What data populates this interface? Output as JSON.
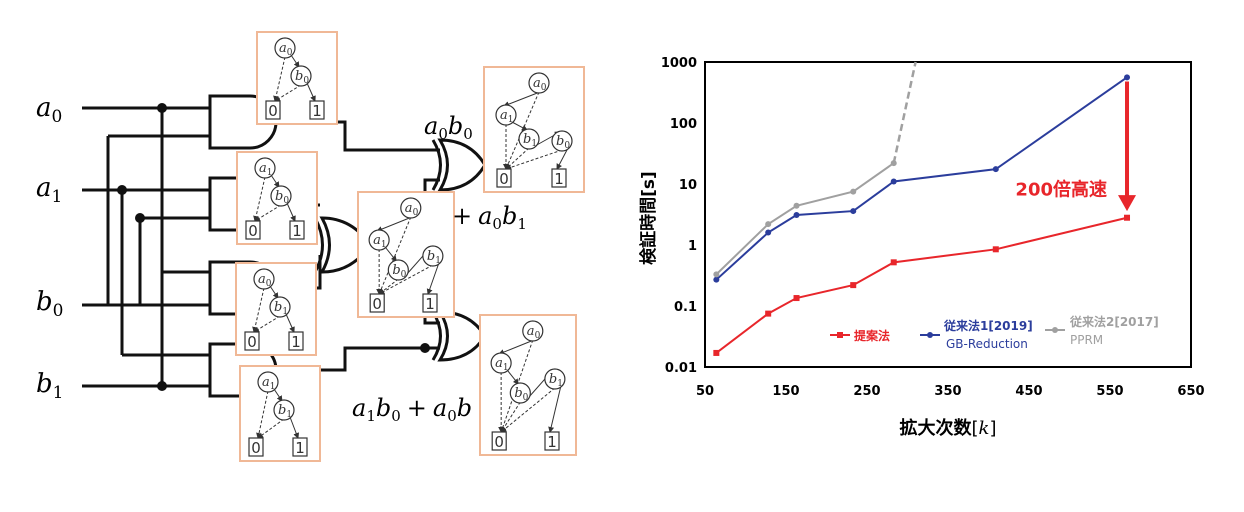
{
  "circuit": {
    "inputs": [
      {
        "var": "a",
        "sub": "0"
      },
      {
        "var": "a",
        "sub": "1"
      },
      {
        "var": "b",
        "sub": "0"
      },
      {
        "var": "b",
        "sub": "1"
      }
    ],
    "outputs": {
      "top": {
        "a": "a",
        "b": "b",
        "s1": "0",
        "s2": "0"
      },
      "middle": {
        "plus": "+",
        "a": "a",
        "s1": "0",
        "b": "b",
        "s2": "1"
      },
      "bottom": {
        "a1": "a",
        "s1": "1",
        "b1": "b",
        "s2": "0",
        "plus": "+",
        "a2": "a",
        "s3": "0",
        "b2": "b"
      }
    },
    "bdd_node_var": "a",
    "bdd_node_var_b": "b",
    "bdd_terminal_0": "0",
    "bdd_terminal_1": "1",
    "bdd_boxes": [
      {
        "nodes": [
          {
            "v": "a",
            "s": "0"
          },
          {
            "v": "b",
            "s": "0"
          }
        ]
      },
      {
        "nodes": [
          {
            "v": "a",
            "s": "1"
          },
          {
            "v": "b",
            "s": "0"
          }
        ]
      },
      {
        "nodes": [
          {
            "v": "a",
            "s": "0"
          },
          {
            "v": "b",
            "s": "1"
          }
        ]
      },
      {
        "nodes": [
          {
            "v": "a",
            "s": "1"
          },
          {
            "v": "b",
            "s": "1"
          }
        ]
      },
      {
        "nodes": [
          {
            "v": "a",
            "s": "0"
          },
          {
            "v": "a",
            "s": "1"
          },
          {
            "v": "b",
            "s": "1"
          },
          {
            "v": "b",
            "s": "0"
          }
        ]
      },
      {
        "nodes": [
          {
            "v": "a",
            "s": "0"
          },
          {
            "v": "a",
            "s": "1"
          },
          {
            "v": "b",
            "s": "0"
          },
          {
            "v": "b",
            "s": "1"
          }
        ]
      },
      {
        "nodes": [
          {
            "v": "a",
            "s": "0"
          },
          {
            "v": "a",
            "s": "1"
          },
          {
            "v": "b",
            "s": "0"
          },
          {
            "v": "b",
            "s": "1"
          }
        ]
      }
    ]
  },
  "chart_data": {
    "type": "line",
    "title": "",
    "xlabel_main": "拡大次数",
    "xlabel_unit": "[k]",
    "xlabel_unit_open": "[",
    "xlabel_unit_var": "k",
    "xlabel_unit_close": "]",
    "ylabel_main": "検証時間",
    "ylabel_unit": "[s]",
    "x_ticks": [
      "50",
      "150",
      "250",
      "350",
      "450",
      "550",
      "650"
    ],
    "x_tick_values": [
      50,
      150,
      250,
      350,
      450,
      550,
      650
    ],
    "y_ticks": [
      "0.01",
      "0.1",
      "1",
      "10",
      "100",
      "1000"
    ],
    "y_tick_values": [
      0.01,
      0.1,
      1,
      10,
      100,
      1000
    ],
    "xlim": [
      50,
      650
    ],
    "ylim": [
      0.01,
      1000
    ],
    "yscale": "log",
    "series": [
      {
        "name": "提案法",
        "color": "#e8262b",
        "x": [
          64,
          128,
          163,
          233,
          283,
          409,
          571
        ],
        "y": [
          0.017,
          0.075,
          0.135,
          0.22,
          0.52,
          0.85,
          2.8
        ]
      },
      {
        "name": "従来法1[2019]",
        "name2": "GB-Reduction",
        "color": "#2b3d9c",
        "x": [
          64,
          128,
          163,
          233,
          283,
          409,
          571
        ],
        "y": [
          0.27,
          1.6,
          3.1,
          3.6,
          11,
          17.5,
          560
        ]
      },
      {
        "name": "従来法2[2017]",
        "name2": "PPRM",
        "color": "#a0a0a0",
        "x": [
          64,
          128,
          163,
          233,
          283
        ],
        "y": [
          0.33,
          2.2,
          4.4,
          7.5,
          22
        ],
        "extrapolated": {
          "x": [
            283,
            310
          ],
          "y": [
            22,
            1000
          ]
        }
      }
    ],
    "annotation": {
      "text": "200倍高速",
      "color": "#e8262b",
      "from_x": 571,
      "from_y": 480,
      "to_x": 571,
      "to_y": 3.6
    }
  }
}
